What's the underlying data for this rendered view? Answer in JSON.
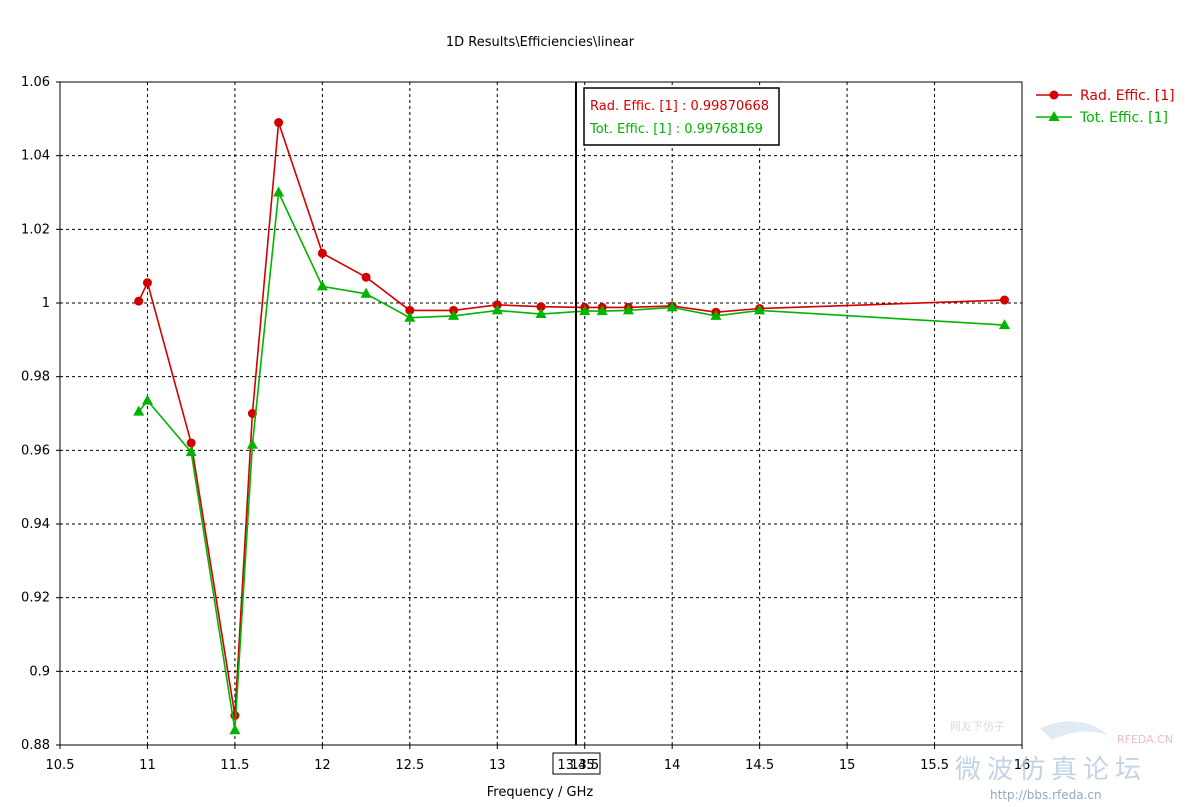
{
  "chart_data": {
    "type": "line",
    "title": "1D Results\\Efficiencies\\linear",
    "xlabel": "Frequency / GHz",
    "ylabel": "",
    "xlim": [
      10.5,
      16
    ],
    "ylim": [
      0.88,
      1.06
    ],
    "x_ticks": [
      "10.5",
      "11",
      "11.5",
      "12",
      "12.5",
      "13",
      "13.5",
      "14",
      "14.5",
      "15",
      "15.5",
      "16"
    ],
    "y_ticks": [
      "0.88",
      "0.9",
      "0.92",
      "0.94",
      "0.96",
      "0.98",
      "1",
      "1.02",
      "1.04",
      "1.06"
    ],
    "grid": true,
    "legend_position": "top-right, outside plot",
    "marker": {
      "x": 13.45,
      "x_label": "13.45",
      "readouts": [
        "Rad. Effic. [1] : 0.99870668",
        "Tot. Effic. [1] : 0.99768169"
      ]
    },
    "series": [
      {
        "name": "Rad. Effic. [1]",
        "color": "#d40000",
        "symbol": "circle",
        "x": [
          10.95,
          11.0,
          11.25,
          11.5,
          11.6,
          11.75,
          12.0,
          12.25,
          12.5,
          12.75,
          13.0,
          13.25,
          13.5,
          13.6,
          13.75,
          14.0,
          14.25,
          14.5,
          15.9
        ],
        "y": [
          1.0005,
          1.0055,
          0.962,
          0.888,
          0.97,
          1.049,
          1.0135,
          1.007,
          0.998,
          0.998,
          0.9995,
          0.999,
          0.9988,
          0.9988,
          0.9988,
          0.9992,
          0.9975,
          0.9985,
          1.0008
        ]
      },
      {
        "name": "Tot. Effic. [1]",
        "color": "#00b400",
        "symbol": "triangle",
        "x": [
          10.95,
          11.0,
          11.25,
          11.5,
          11.6,
          11.75,
          12.0,
          12.25,
          12.5,
          12.75,
          13.0,
          13.25,
          13.5,
          13.6,
          13.75,
          14.0,
          14.25,
          14.5,
          15.9
        ],
        "y": [
          0.9705,
          0.9735,
          0.9595,
          0.884,
          0.9615,
          1.03,
          1.0045,
          1.0025,
          0.996,
          0.9965,
          0.998,
          0.997,
          0.9978,
          0.9978,
          0.998,
          0.9988,
          0.9965,
          0.998,
          0.994
        ]
      }
    ]
  },
  "watermark": {
    "brand": "RFEDA.CN",
    "slogan_small": "网友下仿子",
    "chinese": "微波仿真论坛",
    "url": "http://bbs.rfeda.cn"
  }
}
